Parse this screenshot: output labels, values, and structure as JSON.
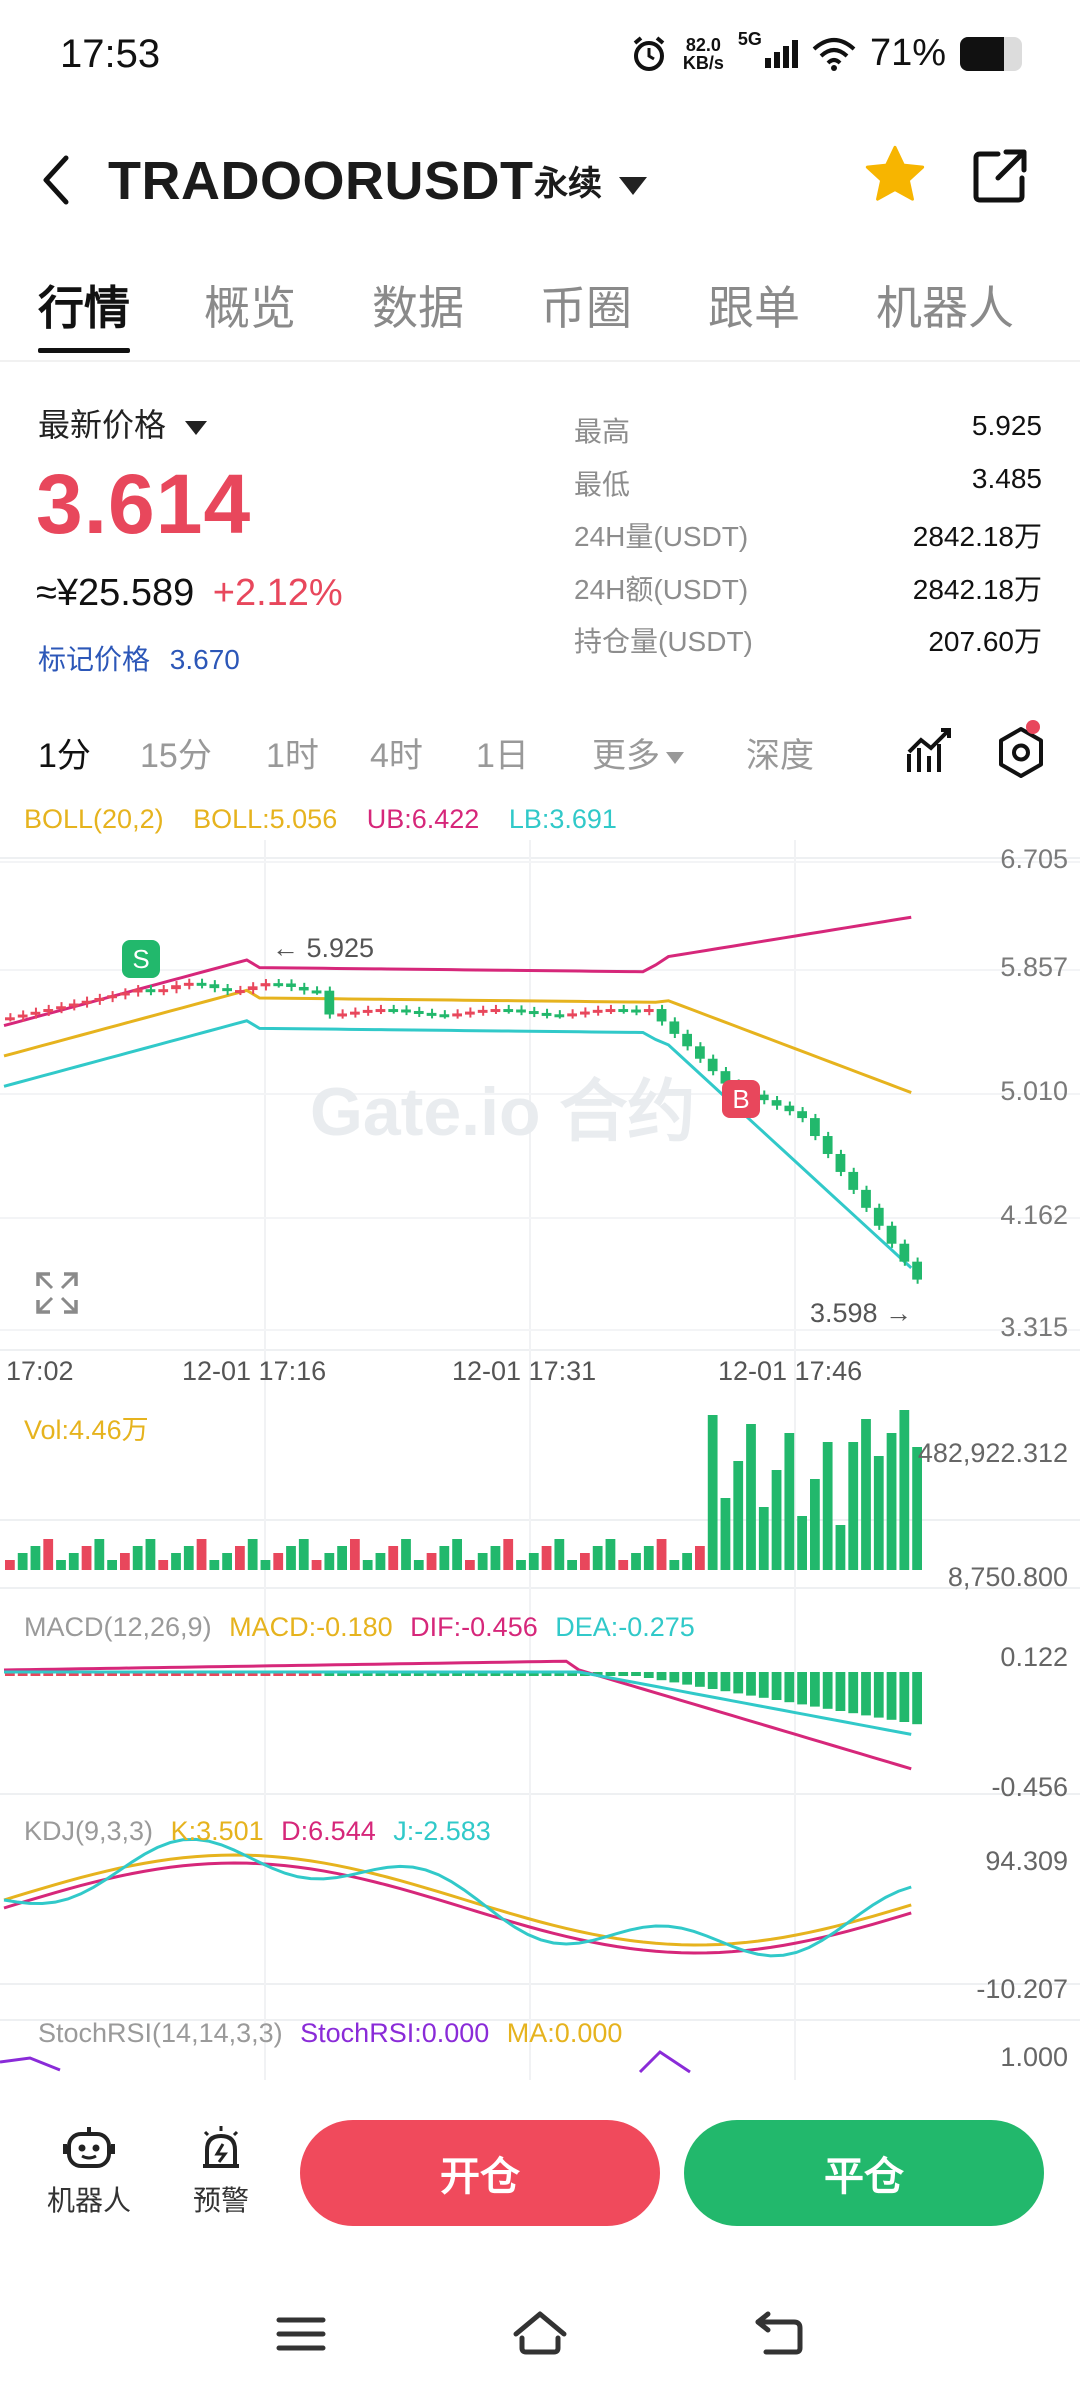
{
  "status_bar": {
    "time": "17:53",
    "net_speed": "82.0",
    "net_unit": "KB/s",
    "signal": "5G",
    "battery": "71%"
  },
  "header": {
    "symbol": "TRADOORUSDT",
    "contract_type": "永续"
  },
  "tabs": [
    "行情",
    "概览",
    "数据",
    "币圈",
    "跟单",
    "机器人"
  ],
  "price": {
    "latest_label": "最新价格",
    "latest": "3.614",
    "cny": "≈¥25.589",
    "change": "+2.12%",
    "mark_label": "标记价格",
    "mark": "3.670"
  },
  "stats": [
    {
      "label": "最高",
      "value": "5.925"
    },
    {
      "label": "最低",
      "value": "3.485"
    },
    {
      "label": "24H量(USDT)",
      "value": "2842.18万"
    },
    {
      "label": "24H额(USDT)",
      "value": "2842.18万"
    },
    {
      "label": "持仓量(USDT)",
      "value": "207.60万"
    }
  ],
  "intervals": [
    "1分",
    "15分",
    "1时",
    "4时",
    "1日",
    "更多",
    "深度"
  ],
  "boll": {
    "title": "BOLL(20,2)",
    "boll": "BOLL:5.056",
    "ub": "UB:6.422",
    "lb": "LB:3.691"
  },
  "price_axis": [
    "6.705",
    "5.857",
    "5.010",
    "4.162",
    "3.315"
  ],
  "time_axis": [
    "17:02",
    "12-01 17:16",
    "12-01 17:31",
    "12-01 17:46"
  ],
  "annotations": {
    "high": "← 5.925",
    "last": "3.598 →",
    "buy_marker": "S",
    "sell_marker": "B"
  },
  "watermark": "Gate.io 合约",
  "volume": {
    "title": "Vol:4.46万",
    "max": "482,922.312",
    "min": "8,750.800"
  },
  "macd": {
    "title": "MACD(12,26,9)",
    "macd": "MACD:-0.180",
    "dif": "DIF:-0.456",
    "dea": "DEA:-0.275",
    "max": "0.122",
    "min": "-0.456"
  },
  "kdj": {
    "title": "KDJ(9,3,3)",
    "k": "K:3.501",
    "d": "D:6.544",
    "j": "J:-2.583",
    "max": "94.309",
    "min": "-10.207"
  },
  "stochrsi": {
    "title": "StochRSI(14,14,3,3)",
    "value": "StochRSI:0.000",
    "ma": "MA:0.000",
    "max": "1.000"
  },
  "bottom": {
    "robot": "机器人",
    "alert": "预警",
    "open": "开仓",
    "close": "平仓"
  },
  "colors": {
    "up": "#e8475c",
    "down": "#22b86c",
    "boll_mid": "#e6b31e",
    "boll_ub": "#d6277a",
    "boll_lb": "#31c9c9"
  }
}
